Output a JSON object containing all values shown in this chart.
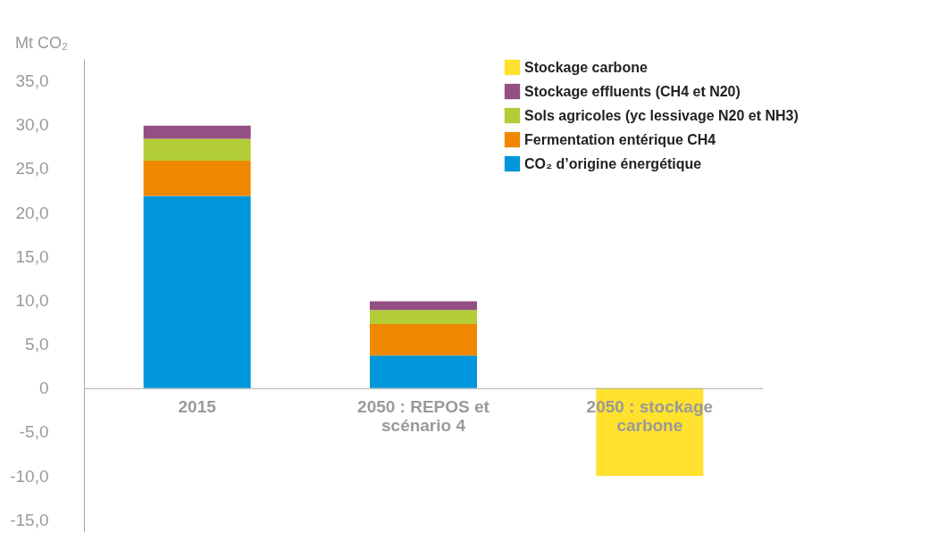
{
  "chart_data": {
    "type": "bar",
    "stacked": true,
    "ylabel": "Mt CO₂",
    "categories": [
      "2015",
      "2050 : REPOS et scénario 4",
      "2050 : stockage carbone"
    ],
    "series": [
      {
        "name": "CO₂ d’origine énergétique",
        "color": "#0096db",
        "values": [
          21.9,
          3.7,
          null
        ]
      },
      {
        "name": "Fermentation entérique CH4",
        "color": "#f08700",
        "values": [
          4.0,
          3.6,
          null
        ]
      },
      {
        "name": "Sols agricoles (yc lessivage N20 et NH3)",
        "color": "#b2cd36",
        "values": [
          2.5,
          1.6,
          null
        ]
      },
      {
        "name": "Stockage effluents (CH4 et N20)",
        "color": "#944f83",
        "values": [
          1.5,
          1.0,
          null
        ]
      },
      {
        "name": "Stockage carbone",
        "color": "#ffe12e",
        "values": [
          null,
          null,
          -10
        ]
      }
    ],
    "ylim": [
      -16.4,
      37.5
    ],
    "yticks": [
      {
        "value": -15,
        "label": "-15,0"
      },
      {
        "value": -10,
        "label": "-10,0"
      },
      {
        "value": -5,
        "label": "-5,0"
      },
      0,
      {
        "value": 5,
        "label": "5,0"
      },
      {
        "value": 10,
        "label": "10,0"
      },
      {
        "value": 15,
        "label": "15,0"
      },
      {
        "value": 20,
        "label": "20,0"
      },
      {
        "value": 25,
        "label": "25,0"
      },
      {
        "value": 30,
        "label": "30,0"
      },
      {
        "value": 35,
        "label": "35,0"
      }
    ],
    "grid": false,
    "legend": "top right"
  }
}
